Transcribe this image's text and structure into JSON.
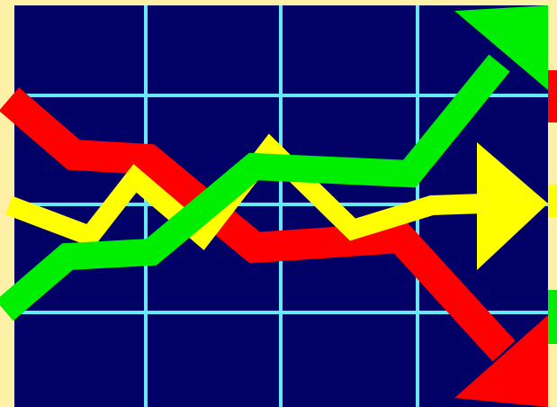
{
  "colors": {
    "frame": "#FFF0A8",
    "background": "#000066",
    "grid": "#66E8FF",
    "up_line": "#00EE00",
    "flat_line": "#FFFF00",
    "down_line": "#FF0000"
  },
  "lines": [
    {
      "name": "green-up-arrow",
      "direction": "up",
      "color_key": "up_line"
    },
    {
      "name": "yellow-flat-arrow",
      "direction": "right",
      "color_key": "flat_line"
    },
    {
      "name": "red-down-arrow",
      "direction": "down",
      "color_key": "down_line"
    }
  ]
}
